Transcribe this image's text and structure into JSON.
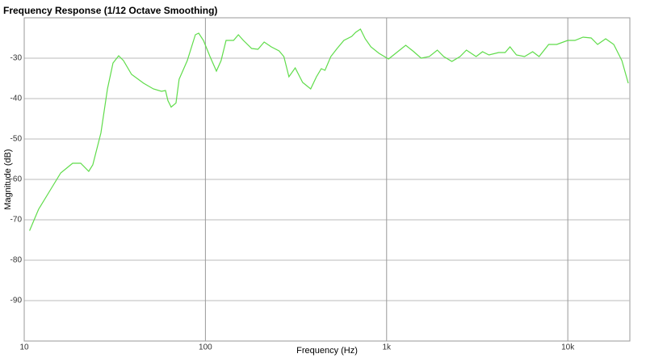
{
  "chart_data": {
    "type": "line",
    "title": "Frequency Response (1/12 Octave Smoothing)",
    "x_label": "Frequency (Hz)",
    "y_label": "Magnitude (dB)",
    "xscale": "log",
    "grid": true,
    "xlim": [
      10,
      22000
    ],
    "ylim": [
      -100,
      -20
    ],
    "xticks": [
      {
        "value": 10,
        "label": "10"
      },
      {
        "value": 100,
        "label": "100"
      },
      {
        "value": 1000,
        "label": "1k"
      },
      {
        "value": 10000,
        "label": "10k"
      }
    ],
    "yticks": [
      -90,
      -80,
      -70,
      -60,
      -50,
      -40,
      -30
    ],
    "series": [
      {
        "color": "#5fdc4a",
        "x": [
          10.7,
          12,
          13.6,
          15.9,
          18.5,
          20.5,
          22.7,
          23.9,
          26.5,
          28.8,
          30.9,
          33.2,
          35.3,
          39.1,
          45.6,
          51.6,
          57.2,
          60.2,
          62.1,
          64.7,
          68.8,
          71.6,
          79.4,
          88,
          91.8,
          97.5,
          106,
          115,
          122,
          130,
          143,
          152,
          162,
          180,
          195,
          211,
          231,
          255,
          271,
          289,
          313,
          344,
          381,
          410,
          436,
          457,
          492,
          533,
          581,
          642,
          675,
          717,
          762,
          819,
          908,
          1025,
          1136,
          1275,
          1413,
          1550,
          1720,
          1905,
          2067,
          2292,
          2542,
          2758,
          3118,
          3383,
          3670,
          4155,
          4508,
          4797,
          5206,
          5770,
          6398,
          6940,
          7842,
          8690,
          9990,
          10950,
          12140,
          13460,
          14600,
          16180,
          17930,
          19880,
          21560
        ],
        "values": [
          -72.7,
          -67.4,
          -63.4,
          -58.4,
          -56,
          -56,
          -58,
          -56.4,
          -48.5,
          -37.6,
          -31.2,
          -29.4,
          -30.6,
          -34,
          -36.2,
          -37.6,
          -38.2,
          -38,
          -40.5,
          -42.1,
          -41.1,
          -35.2,
          -30.6,
          -24.2,
          -23.8,
          -25.6,
          -29.6,
          -33.2,
          -30.6,
          -25.6,
          -25.6,
          -24.2,
          -25.6,
          -27.6,
          -27.8,
          -26,
          -27.2,
          -28.2,
          -29.6,
          -34.6,
          -32.4,
          -36,
          -37.6,
          -34.6,
          -32.6,
          -33,
          -29.6,
          -27.6,
          -25.6,
          -24.6,
          -23.6,
          -22.8,
          -25.2,
          -27.2,
          -28.8,
          -30.2,
          -28.6,
          -26.8,
          -28.4,
          -30,
          -29.6,
          -28,
          -29.6,
          -30.8,
          -29.6,
          -28,
          -29.6,
          -28.4,
          -29.2,
          -28.6,
          -28.6,
          -27.2,
          -29.2,
          -29.6,
          -28.4,
          -29.6,
          -26.6,
          -26.6,
          -25.6,
          -25.6,
          -24.8,
          -25,
          -26.6,
          -25.2,
          -26.6,
          -30.6,
          -36.2
        ]
      }
    ]
  }
}
